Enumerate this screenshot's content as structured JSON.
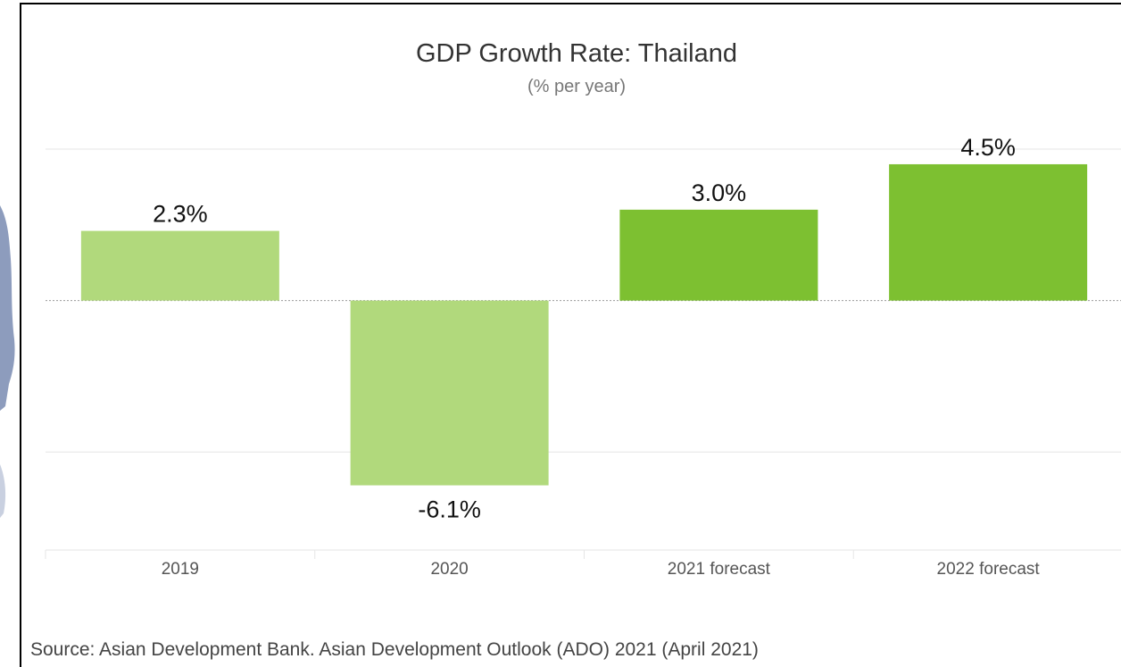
{
  "colors": {
    "actual_bar": "#b1d97c",
    "forecast_bar": "#7dc031",
    "gridline": "#e6e6e6",
    "zero_line": "#999999",
    "map_blue": "#8d9cbd"
  },
  "chart_data": {
    "type": "bar",
    "title": "GDP Growth Rate: Thailand",
    "subtitle": "(% per year)",
    "categories": [
      "2019",
      "2020",
      "2021 forecast",
      "2022 forecast"
    ],
    "values": [
      2.3,
      -6.1,
      3.0,
      4.5
    ],
    "value_labels": [
      "2.3%",
      "-6.1%",
      "3.0%",
      "4.5%"
    ],
    "is_forecast": [
      false,
      false,
      true,
      true
    ],
    "ylim": [
      -8.0,
      5.0
    ],
    "grid": true,
    "legend": "none",
    "xlabel": "",
    "ylabel": ""
  },
  "source": "Source: Asian Development Bank. Asian Development Outlook (ADO) 2021 (April 2021)"
}
